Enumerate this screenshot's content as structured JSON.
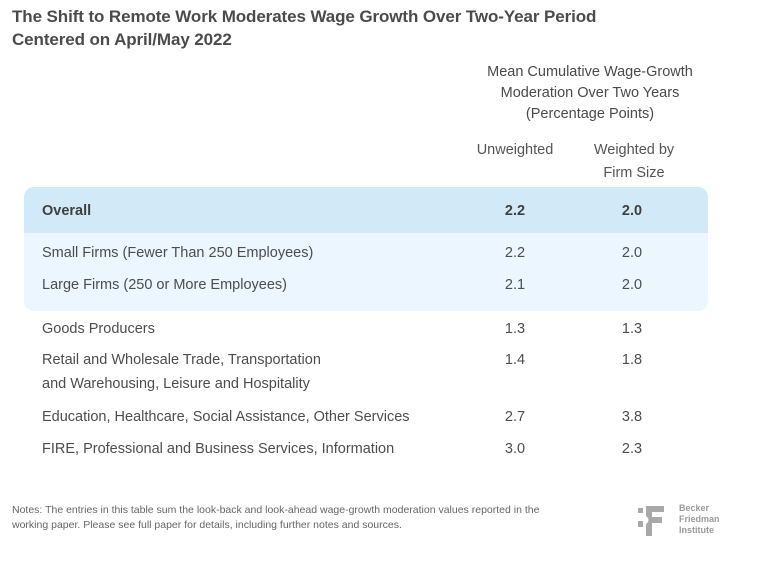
{
  "chart_data": {
    "type": "table",
    "title": "The Shift to Remote Work Moderates Wage Growth Over Two-Year Period Centered on April/May 2022",
    "title_lines": [
      "The Shift to Remote Work Moderates Wage Growth Over Two-Year Period",
      "Centered on April/May 2022"
    ],
    "column_group_header": [
      "Mean Cumulative Wage-Growth",
      "Moderation Over Two Years",
      "(Percentage Points)"
    ],
    "columns": [
      "Unweighted",
      "Weighted by Firm Size"
    ],
    "column_labels": {
      "unweighted": "Unweighted",
      "weighted_line1": "Weighted by",
      "weighted_line2": "Firm Size"
    },
    "rows": [
      {
        "label": "Overall",
        "label_line2": "",
        "unweighted": "2.2",
        "weighted": "2.0",
        "group": "overall"
      },
      {
        "label": "Small Firms (Fewer Than 250 Employees)",
        "label_line2": "",
        "unweighted": "2.2",
        "weighted": "2.0",
        "group": "firm-size"
      },
      {
        "label": "Large Firms (250 or More Employees)",
        "label_line2": "",
        "unweighted": "2.1",
        "weighted": "2.0",
        "group": "firm-size"
      },
      {
        "label": "Goods Producers",
        "label_line2": "",
        "unweighted": "1.3",
        "weighted": "1.3",
        "group": "industry"
      },
      {
        "label": "Retail and Wholesale Trade, Transportation",
        "label_line2": "and Warehousing, Leisure and Hospitality",
        "unweighted": "1.4",
        "weighted": "1.8",
        "group": "industry"
      },
      {
        "label": "Education, Healthcare, Social Assistance, Other Services",
        "label_line2": "",
        "unweighted": "2.7",
        "weighted": "3.8",
        "group": "industry"
      },
      {
        "label": "FIRE, Professional and Business Services, Information",
        "label_line2": "",
        "unweighted": "3.0",
        "weighted": "2.3",
        "group": "industry"
      }
    ],
    "colors": {
      "overall_band": "#d2eaf8",
      "firm_size_band": "#ebf6fe"
    }
  },
  "notes": "Notes: The entries in this table sum the look-back and look-ahead wage-growth moderation values reported in the working paper. Please see full paper for details, including further notes and sources.",
  "logo": {
    "mark": "BF",
    "lines": [
      "Becker",
      "Friedman",
      "Institute"
    ]
  }
}
